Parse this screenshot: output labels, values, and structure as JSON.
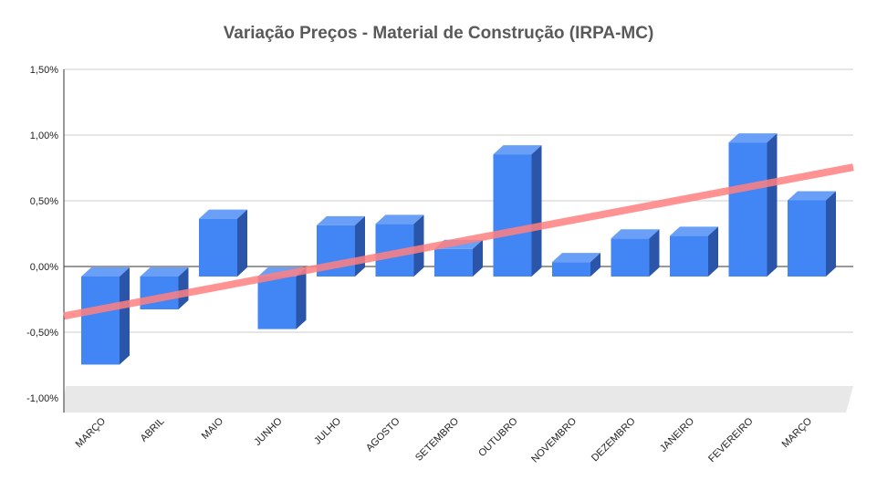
{
  "chart_data": {
    "type": "bar",
    "title": "Variação Preços - Material de Construção (IRPA-MC)",
    "xlabel": "",
    "ylabel": "",
    "categories": [
      "MARÇO",
      "ABRIL",
      "MAIO",
      "JUNHO",
      "JULHO",
      "AGOSTO",
      "SETEMBRO",
      "OUTUBRO",
      "NOVEMBRO",
      "DEZEMBRO",
      "JANEIRO",
      "FEVEREIRO",
      "MARÇO"
    ],
    "series": [
      {
        "values": [
          -0.67,
          -0.25,
          0.44,
          -0.4,
          0.39,
          0.4,
          0.21,
          0.93,
          0.11,
          0.29,
          0.31,
          1.02,
          0.58
        ]
      }
    ],
    "trendline": {
      "type": "linear",
      "color": "#ff8080"
    },
    "yticks": [
      "1,50%",
      "1,00%",
      "0,50%",
      "0,00%",
      "-0,50%",
      "-1,00%"
    ],
    "ytick_values": [
      1.5,
      1.0,
      0.5,
      0.0,
      -0.5,
      -1.0
    ],
    "ylim": [
      -1.0,
      1.5
    ],
    "grid": true,
    "legend": "none",
    "three_d": true,
    "colors": {
      "bar_front": "#4285f4",
      "bar_top": "#6a9ff7",
      "bar_side": "#2b55a8",
      "grid": "#cccccc",
      "floor": "#e8e8e8",
      "title": "#595959"
    }
  }
}
